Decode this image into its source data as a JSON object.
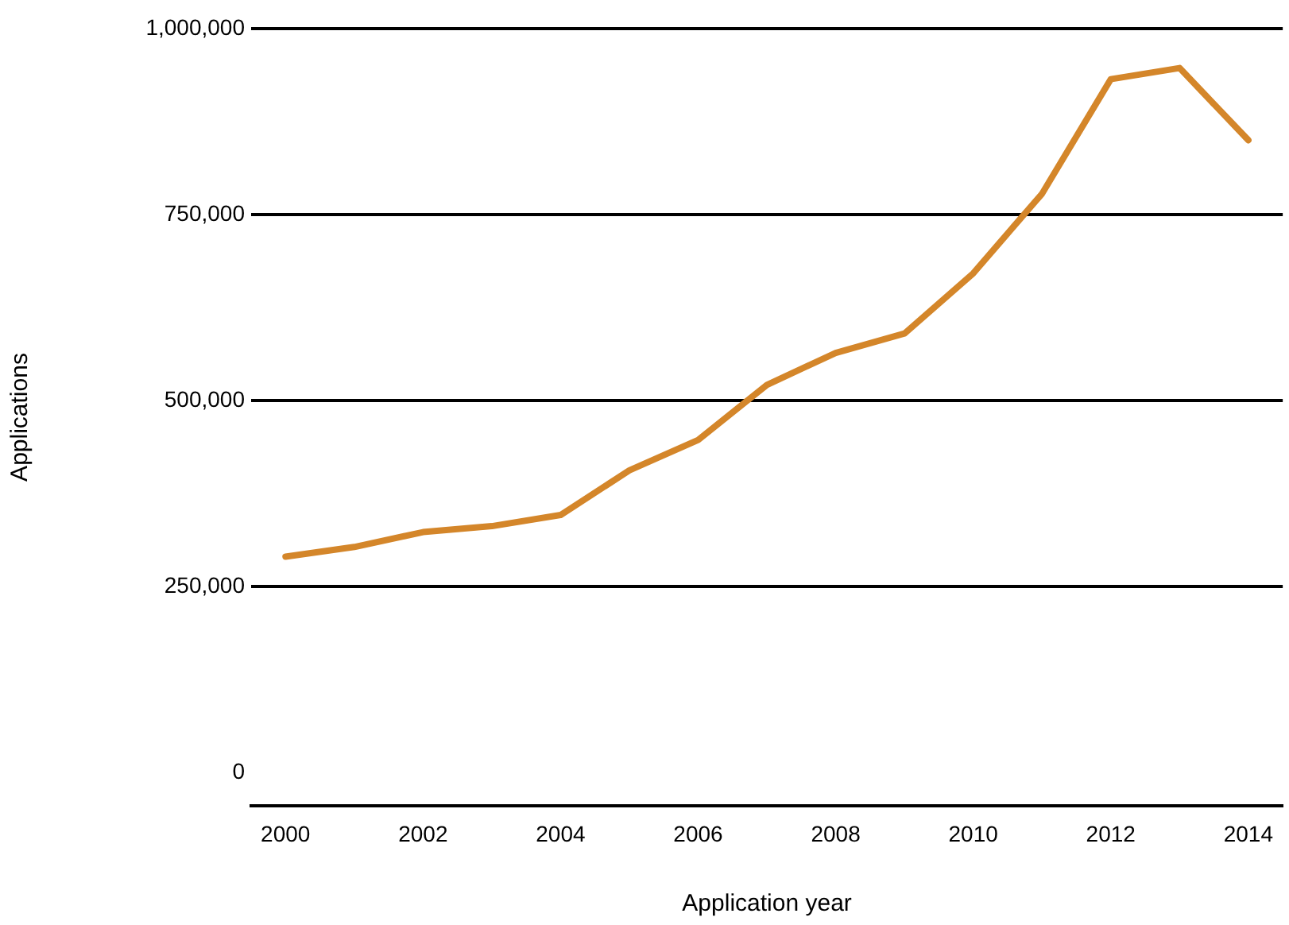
{
  "chart_data": {
    "type": "line",
    "xlabel": "Application year",
    "ylabel": "Applications",
    "x": [
      2000,
      2001,
      2002,
      2003,
      2004,
      2005,
      2006,
      2007,
      2008,
      2009,
      2010,
      2011,
      2012,
      2013,
      2014
    ],
    "series": [
      {
        "color": "#d4862a",
        "values": [
          290000,
          303000,
          323000,
          331000,
          346000,
          406000,
          447000,
          521000,
          564000,
          590000,
          671000,
          778000,
          932000,
          947000,
          850000
        ]
      }
    ],
    "xlim": [
      1999.5,
      2014.5
    ],
    "xticks": [
      2000,
      2002,
      2004,
      2006,
      2008,
      2010,
      2012,
      2014
    ],
    "ylim": [
      -45000,
      1000000
    ],
    "yticks": [
      {
        "value": 0,
        "label": "0"
      },
      {
        "value": 250000,
        "label": "250,000"
      },
      {
        "value": 500000,
        "label": "500,000"
      },
      {
        "value": 750000,
        "label": "750,000"
      },
      {
        "value": 1000000,
        "label": "1,000,000"
      }
    ],
    "grid": "y",
    "marker": "none",
    "line_style": "solid"
  }
}
